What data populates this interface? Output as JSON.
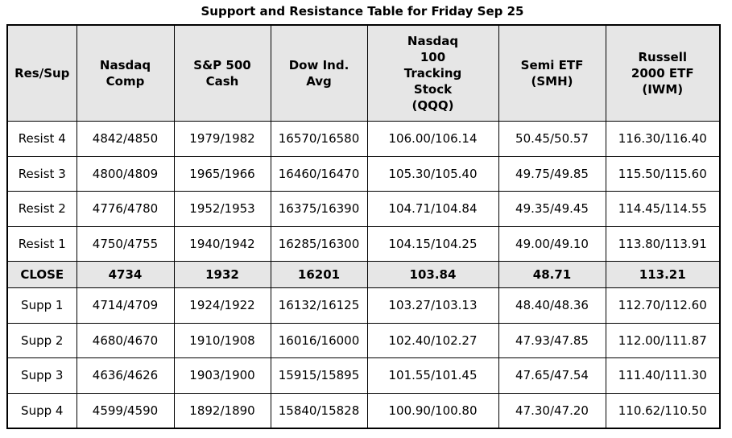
{
  "title": "Support and Resistance Table for Friday Sep 25",
  "columns": [
    {
      "lines": [
        "Res/Sup"
      ]
    },
    {
      "lines": [
        "Nasdaq",
        "Comp"
      ]
    },
    {
      "lines": [
        "S&P 500",
        "Cash"
      ]
    },
    {
      "lines": [
        "Dow Ind.",
        "Avg"
      ]
    },
    {
      "lines": [
        "Nasdaq",
        "100",
        "Tracking",
        "Stock",
        "(QQQ)"
      ]
    },
    {
      "lines": [
        "Semi ETF",
        "(SMH)"
      ]
    },
    {
      "lines": [
        "Russell",
        "2000 ETF",
        "(IWM)"
      ]
    }
  ],
  "rows": [
    {
      "type": "resist",
      "cells": [
        "Resist 4",
        "4842/4850",
        "1979/1982",
        "16570/16580",
        "106.00/106.14",
        "50.45/50.57",
        "116.30/116.40"
      ]
    },
    {
      "type": "resist",
      "cells": [
        "Resist 3",
        "4800/4809",
        "1965/1966",
        "16460/16470",
        "105.30/105.40",
        "49.75/49.85",
        "115.50/115.60"
      ]
    },
    {
      "type": "resist",
      "cells": [
        "Resist 2",
        "4776/4780",
        "1952/1953",
        "16375/16390",
        "104.71/104.84",
        "49.35/49.45",
        "114.45/114.55"
      ]
    },
    {
      "type": "resist",
      "cells": [
        "Resist 1",
        "4750/4755",
        "1940/1942",
        "16285/16300",
        "104.15/104.25",
        "49.00/49.10",
        "113.80/113.91"
      ]
    },
    {
      "type": "close",
      "cells": [
        "CLOSE",
        "4734",
        "1932",
        "16201",
        "103.84",
        "48.71",
        "113.21"
      ]
    },
    {
      "type": "support",
      "cells": [
        "Supp 1",
        "4714/4709",
        "1924/1922",
        "16132/16125",
        "103.27/103.13",
        "48.40/48.36",
        "112.70/112.60"
      ]
    },
    {
      "type": "support",
      "cells": [
        "Supp 2",
        "4680/4670",
        "1910/1908",
        "16016/16000",
        "102.40/102.27",
        "47.93/47.85",
        "112.00/111.87"
      ]
    },
    {
      "type": "support",
      "cells": [
        "Supp 3",
        "4636/4626",
        "1903/1900",
        "15915/15895",
        "101.55/101.45",
        "47.65/47.54",
        "111.40/111.30"
      ]
    },
    {
      "type": "support",
      "cells": [
        "Supp 4",
        "4599/4590",
        "1892/1890",
        "15840/15828",
        "100.90/100.80",
        "47.30/47.20",
        "110.62/110.50"
      ]
    }
  ],
  "colors": {
    "header_background": "#e6e6e6",
    "close_row_background": "#e6e6e6",
    "border": "#000000"
  }
}
